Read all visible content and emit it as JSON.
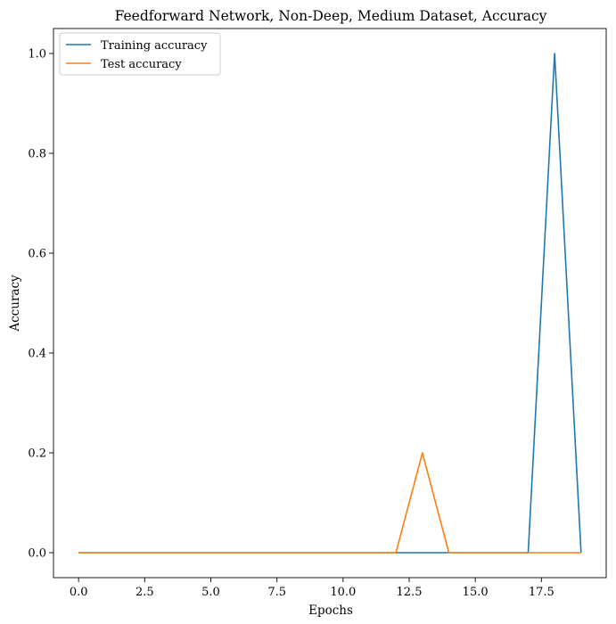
{
  "chart_data": {
    "type": "line",
    "title": "Feedforward Network, Non-Deep, Medium Dataset, Accuracy",
    "xlabel": "Epochs",
    "ylabel": "Accuracy",
    "xlim": [
      -0.95,
      19.95
    ],
    "ylim": [
      -0.05,
      1.05
    ],
    "xticks": [
      0.0,
      2.5,
      5.0,
      7.5,
      10.0,
      12.5,
      15.0,
      17.5
    ],
    "xtick_labels": [
      "0.0",
      "2.5",
      "5.0",
      "7.5",
      "10.0",
      "12.5",
      "15.0",
      "17.5"
    ],
    "yticks": [
      0.0,
      0.2,
      0.4,
      0.6,
      0.8,
      1.0
    ],
    "ytick_labels": [
      "0.0",
      "0.2",
      "0.4",
      "0.6",
      "0.8",
      "1.0"
    ],
    "grid": false,
    "legend": "top-left",
    "x": [
      0,
      1,
      2,
      3,
      4,
      5,
      6,
      7,
      8,
      9,
      10,
      11,
      12,
      13,
      14,
      15,
      16,
      17,
      18,
      19
    ],
    "series": [
      {
        "name": "Training accuracy",
        "color": "#1f77b4",
        "values": [
          0,
          0,
          0,
          0,
          0,
          0,
          0,
          0,
          0,
          0,
          0,
          0,
          0,
          0,
          0,
          0,
          0,
          0,
          1.0,
          0
        ]
      },
      {
        "name": "Test accuracy",
        "color": "#ff7f0e",
        "values": [
          0,
          0,
          0,
          0,
          0,
          0,
          0,
          0,
          0,
          0,
          0,
          0,
          0,
          0.2,
          0,
          0,
          0,
          0,
          0,
          0
        ]
      }
    ]
  }
}
